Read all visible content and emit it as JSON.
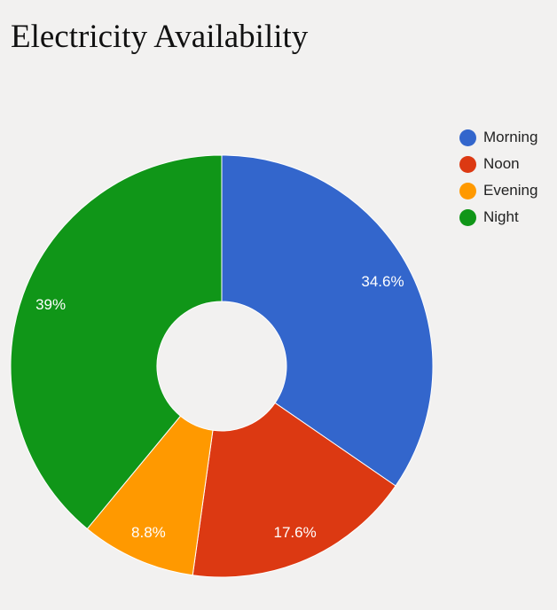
{
  "chart_data": {
    "type": "pie",
    "title": "Electricity Availability",
    "donut": true,
    "legend_position": "right",
    "series": [
      {
        "name": "Morning",
        "value": 34.6,
        "label": "34.6%",
        "color": "#3366cc"
      },
      {
        "name": "Noon",
        "value": 17.6,
        "label": "17.6%",
        "color": "#dc3912"
      },
      {
        "name": "Evening",
        "value": 8.8,
        "label": "8.8%",
        "color": "#ff9900"
      },
      {
        "name": "Night",
        "value": 39,
        "label": "39%",
        "color": "#109618"
      }
    ]
  }
}
